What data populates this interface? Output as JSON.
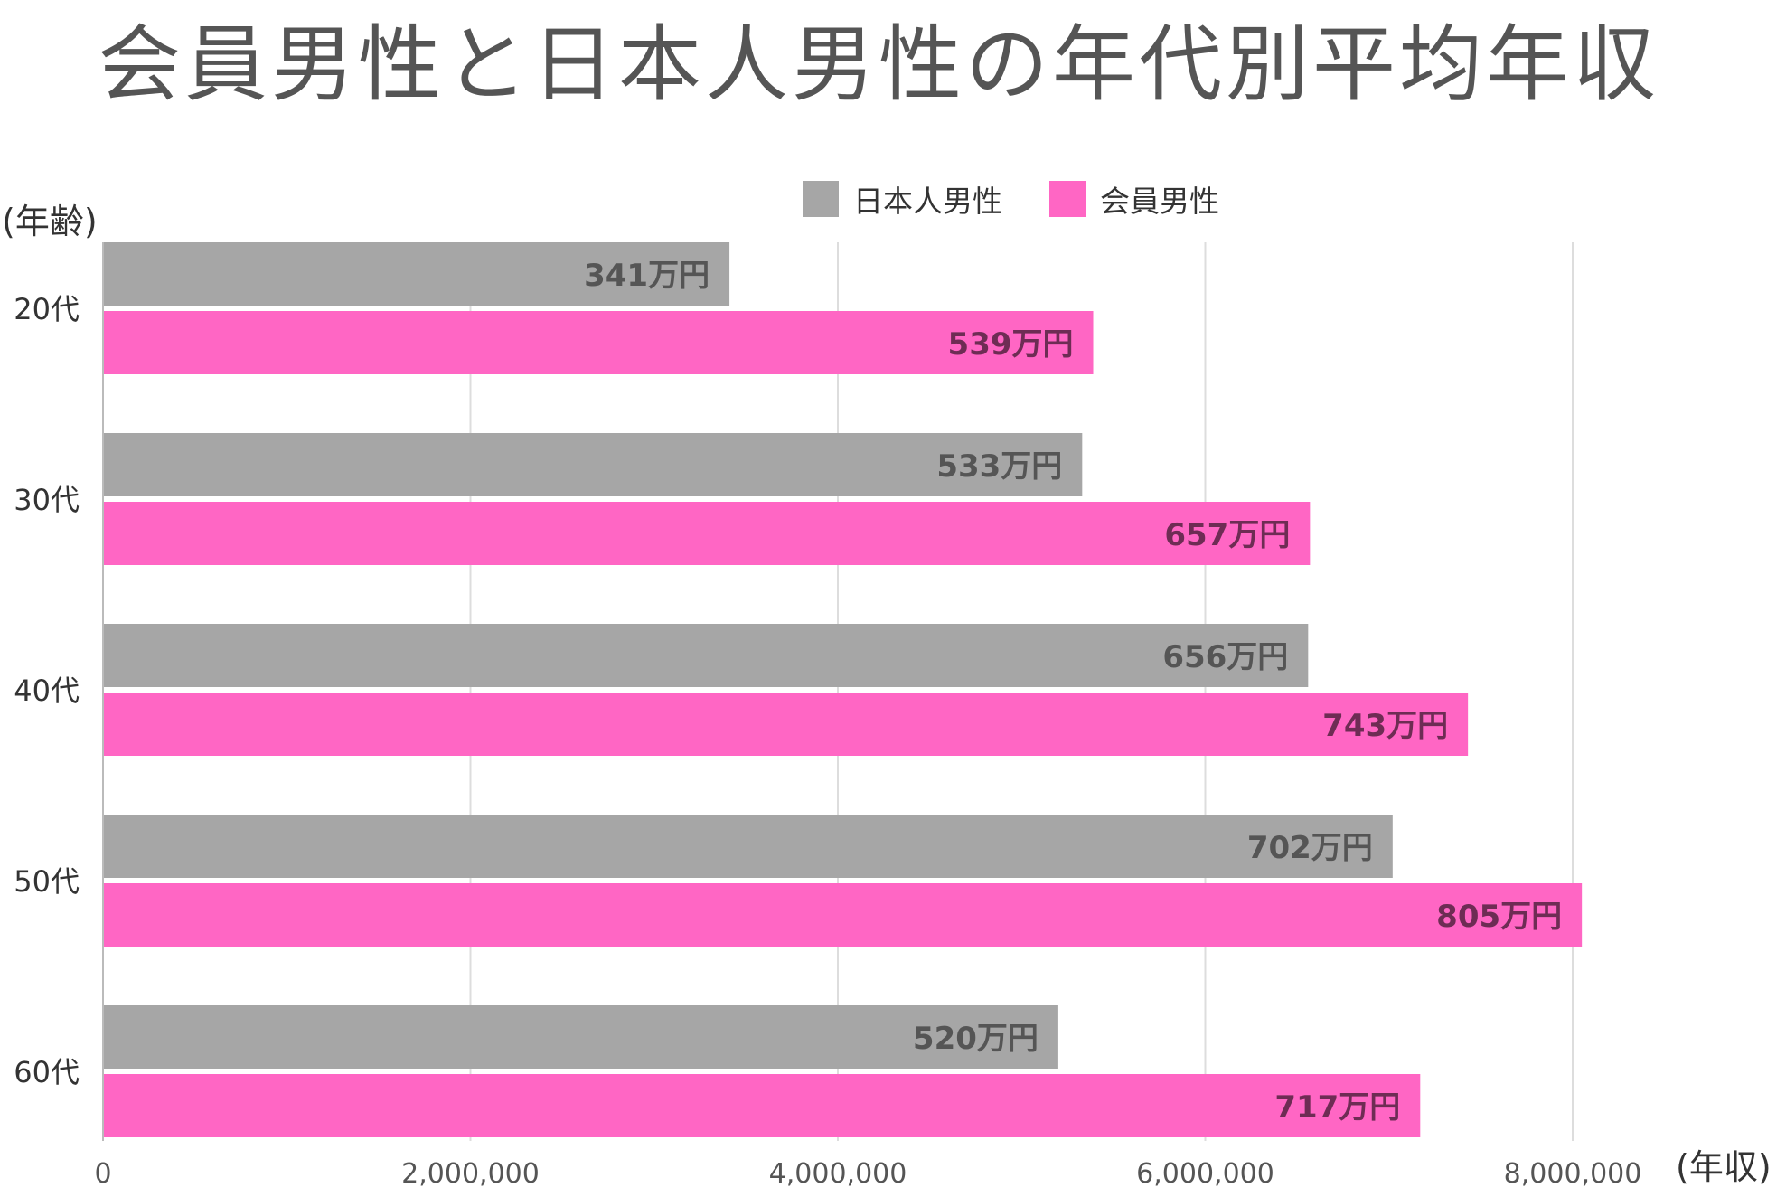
{
  "chart_data": {
    "type": "bar",
    "orientation": "horizontal",
    "title": "会員男性と日本人男性の年代別平均年収",
    "ylabel": "(年齢)",
    "xlabel": "(年収)",
    "categories": [
      "20代",
      "30代",
      "40代",
      "50代",
      "60代"
    ],
    "series": [
      {
        "name": "日本人男性",
        "color": "#a6a6a6",
        "label_color": "#555555",
        "values": [
          3410000,
          5330000,
          6560000,
          7020000,
          5200000
        ],
        "labels": [
          "341万円",
          "533万円",
          "656万円",
          "702万円",
          "520万円"
        ]
      },
      {
        "name": "会員男性",
        "color": "#ff66c4",
        "label_color": "#6e2c54",
        "values": [
          5390000,
          6570000,
          7430000,
          8050000,
          7170000
        ],
        "labels": [
          "539万円",
          "657万円",
          "743万円",
          "805万円",
          "717万円"
        ]
      }
    ],
    "xlim": [
      0,
      8000000
    ],
    "x_ticks": [
      0,
      2000000,
      4000000,
      6000000,
      8000000
    ],
    "x_tick_labels": [
      "0",
      "2,000,000",
      "4,000,000",
      "6,000,000",
      "8,000,000"
    ],
    "grid": true,
    "legend_position": "top"
  }
}
